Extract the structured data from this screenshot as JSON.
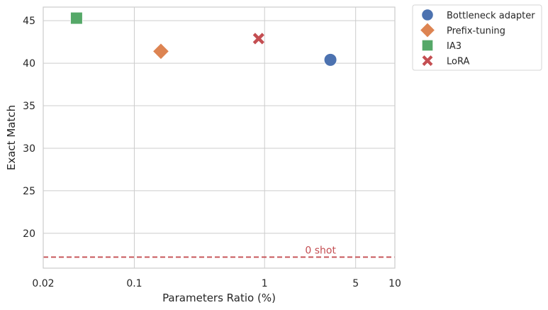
{
  "chart_data": {
    "type": "scatter",
    "title": "",
    "xlabel": "Parameters Ratio (%)",
    "ylabel": "Exact Match",
    "xscale": "log",
    "xlim": [
      0.02,
      10
    ],
    "ylim": [
      15.9,
      46.6
    ],
    "xticks": [
      {
        "value": 0.02,
        "label": "0.02"
      },
      {
        "value": 0.1,
        "label": "0.1"
      },
      {
        "value": 1,
        "label": "1"
      },
      {
        "value": 5,
        "label": "5"
      },
      {
        "value": 10,
        "label": "10"
      }
    ],
    "yticks": [
      {
        "value": 20,
        "label": "20"
      },
      {
        "value": 25,
        "label": "25"
      },
      {
        "value": 30,
        "label": "30"
      },
      {
        "value": 35,
        "label": "35"
      },
      {
        "value": 40,
        "label": "40"
      },
      {
        "value": 45,
        "label": "45"
      }
    ],
    "grid": true,
    "legend_position": "outside-top-right",
    "series": [
      {
        "name": "Bottleneck adapter",
        "marker": "circle",
        "color": "#4c72b0",
        "points": [
          {
            "x": 3.2,
            "y": 40.4
          }
        ]
      },
      {
        "name": "Prefix-tuning",
        "marker": "diamond",
        "color": "#dd8452",
        "points": [
          {
            "x": 0.16,
            "y": 41.4
          }
        ]
      },
      {
        "name": "IA3",
        "marker": "square",
        "color": "#55a868",
        "points": [
          {
            "x": 0.036,
            "y": 45.3
          }
        ]
      },
      {
        "name": "LoRA",
        "marker": "x",
        "color": "#c44e52",
        "points": [
          {
            "x": 0.9,
            "y": 42.9
          }
        ]
      }
    ],
    "reference_line": {
      "y": 17.2,
      "label": "0 shot",
      "color": "#c44e52",
      "style": "dashed"
    }
  }
}
